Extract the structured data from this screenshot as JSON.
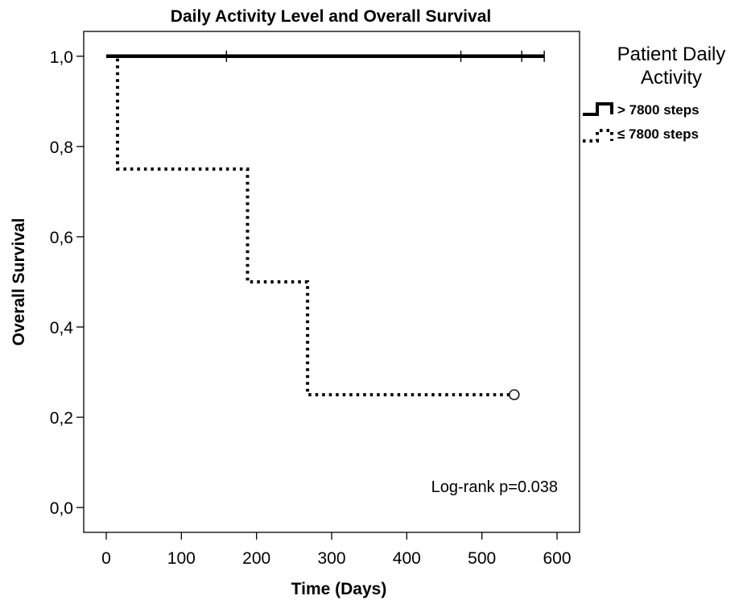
{
  "chart_data": {
    "type": "line",
    "title": "Daily Activity Level and Overall Survival",
    "xlabel": "Time (Days)",
    "ylabel": "Overall Survival",
    "xlim": [
      -30,
      630
    ],
    "ylim": [
      -0.055,
      1.055
    ],
    "x_ticks": [
      0,
      100,
      200,
      300,
      400,
      500,
      600
    ],
    "x_tick_labels": [
      "0",
      "100",
      "200",
      "300",
      "400",
      "500",
      "600"
    ],
    "y_ticks": [
      0.0,
      0.2,
      0.4,
      0.6,
      0.8,
      1.0
    ],
    "y_tick_labels": [
      "0,0",
      "0,2",
      "0,4",
      "0,6",
      "0,8",
      "1,0"
    ],
    "grid": false,
    "legend": {
      "title_lines": [
        "Patient Daily",
        "Activity"
      ],
      "placement": "top-right outside"
    },
    "series": [
      {
        "name": "> 7800 steps",
        "style": "solid",
        "color": "#000000",
        "x": [
          0,
          583
        ],
        "y": [
          1.0,
          1.0
        ],
        "censor_x": [
          160,
          472,
          553,
          583
        ],
        "censor_y": [
          1.0,
          1.0,
          1.0,
          1.0
        ],
        "censor_marker": "tick"
      },
      {
        "name": "≤ 7800 steps",
        "style": "dotted",
        "color": "#000000",
        "x": [
          0,
          15,
          15,
          188,
          188,
          268,
          268,
          543
        ],
        "y": [
          1.0,
          1.0,
          0.75,
          0.75,
          0.5,
          0.5,
          0.25,
          0.25
        ],
        "censor_x": [
          543
        ],
        "censor_y": [
          0.25
        ],
        "censor_marker": "circle"
      }
    ],
    "annotations": [
      {
        "text": "Log-rank p=0.038",
        "position": "lower-right"
      }
    ]
  }
}
